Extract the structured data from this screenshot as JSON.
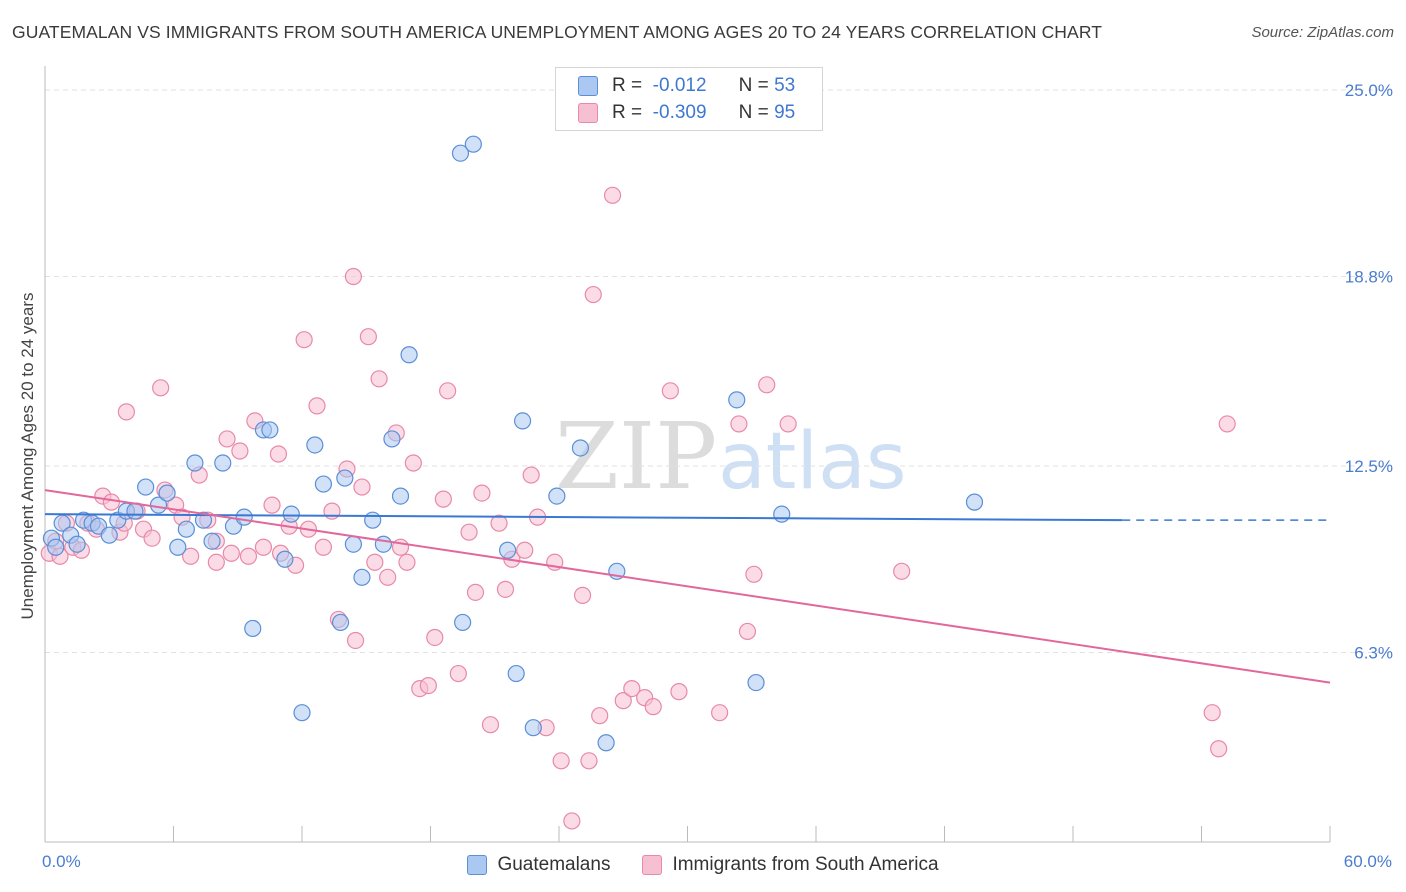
{
  "title": "GUATEMALAN VS IMMIGRANTS FROM SOUTH AMERICA UNEMPLOYMENT AMONG AGES 20 TO 24 YEARS CORRELATION CHART",
  "source": "Source: ZipAtlas.com",
  "watermark": {
    "zip": "ZIP",
    "atlas": "atlas"
  },
  "legend": {
    "r_label": "R =",
    "n_label": "N =",
    "rows": [
      {
        "r": "-0.012",
        "n": "53",
        "fill": "#aac8f2",
        "stroke": "#5b8fd6"
      },
      {
        "r": "-0.309",
        "n": "95",
        "fill": "#f7bfd2",
        "stroke": "#e889a9"
      }
    ]
  },
  "bottom_legend": [
    "Guatemalans",
    "Immigrants from South America"
  ],
  "colors": {
    "blue": "#3a78d4",
    "pink": "#e2679a",
    "blue_fill": "#aac8f2",
    "pink_fill": "#f7bfd2",
    "tick_text": "#4a7ccf",
    "grid": "#e2e2e2"
  },
  "chart_data": {
    "type": "scatter",
    "title": "GUATEMALAN VS IMMIGRANTS FROM SOUTH AMERICA UNEMPLOYMENT AMONG AGES 20 TO 24 YEARS CORRELATION CHART",
    "xlabel": "",
    "ylabel": "Unemployment Among Ages 20 to 24 years",
    "xlim": [
      0,
      60
    ],
    "ylim": [
      0,
      25.6
    ],
    "x_tick_labels": [
      "0.0%",
      "60.0%"
    ],
    "y_ticks": [
      6.3,
      12.5,
      18.8,
      25.0
    ],
    "y_tick_labels": [
      "6.3%",
      "12.5%",
      "18.8%",
      "25.0%"
    ],
    "grid": true,
    "series": [
      {
        "name": "Guatemalans",
        "R": -0.012,
        "N": 53,
        "trend": {
          "x0": 0,
          "y0": 10.9,
          "x1": 50.3,
          "y1": 10.7,
          "dashed_to_x": 60,
          "dashed_to_y": 10.7
        },
        "points": [
          [
            0.3,
            10.1
          ],
          [
            0.5,
            9.8
          ],
          [
            0.8,
            10.6
          ],
          [
            1.2,
            10.2
          ],
          [
            1.5,
            9.9
          ],
          [
            1.8,
            10.7
          ],
          [
            2.2,
            10.6
          ],
          [
            2.5,
            10.5
          ],
          [
            3.0,
            10.2
          ],
          [
            3.4,
            10.7
          ],
          [
            3.8,
            11.0
          ],
          [
            4.2,
            11.0
          ],
          [
            4.7,
            11.8
          ],
          [
            5.3,
            11.2
          ],
          [
            5.7,
            11.6
          ],
          [
            6.2,
            9.8
          ],
          [
            6.6,
            10.4
          ],
          [
            7.0,
            12.6
          ],
          [
            7.4,
            10.7
          ],
          [
            7.8,
            10.0
          ],
          [
            8.3,
            12.6
          ],
          [
            8.8,
            10.5
          ],
          [
            9.3,
            10.8
          ],
          [
            9.7,
            7.1
          ],
          [
            10.2,
            13.7
          ],
          [
            10.5,
            13.7
          ],
          [
            11.2,
            9.4
          ],
          [
            11.5,
            10.9
          ],
          [
            12.0,
            4.3
          ],
          [
            12.6,
            13.2
          ],
          [
            13.0,
            11.9
          ],
          [
            13.8,
            7.3
          ],
          [
            14.0,
            12.1
          ],
          [
            14.4,
            9.9
          ],
          [
            14.8,
            8.8
          ],
          [
            15.3,
            10.7
          ],
          [
            15.8,
            9.9
          ],
          [
            16.2,
            13.4
          ],
          [
            16.6,
            11.5
          ],
          [
            17.0,
            16.2
          ],
          [
            19.4,
            22.9
          ],
          [
            20.0,
            23.2
          ],
          [
            19.5,
            7.3
          ],
          [
            21.6,
            9.7
          ],
          [
            22.0,
            5.6
          ],
          [
            22.3,
            14.0
          ],
          [
            22.8,
            3.8
          ],
          [
            23.9,
            11.5
          ],
          [
            25.0,
            13.1
          ],
          [
            26.2,
            3.3
          ],
          [
            26.7,
            9.0
          ],
          [
            32.3,
            14.7
          ],
          [
            33.2,
            5.3
          ],
          [
            34.4,
            10.9
          ],
          [
            43.4,
            11.3
          ]
        ]
      },
      {
        "name": "Immigrants from South America",
        "R": -0.309,
        "N": 95,
        "trend": {
          "x0": 0,
          "y0": 11.7,
          "x1": 60,
          "y1": 5.3
        },
        "points": [
          [
            0.2,
            9.6
          ],
          [
            0.5,
            10.0
          ],
          [
            0.7,
            9.5
          ],
          [
            1.0,
            10.6
          ],
          [
            1.3,
            9.8
          ],
          [
            1.7,
            9.7
          ],
          [
            2.0,
            10.6
          ],
          [
            2.4,
            10.4
          ],
          [
            2.7,
            11.5
          ],
          [
            3.1,
            11.3
          ],
          [
            3.5,
            10.3
          ],
          [
            3.7,
            10.6
          ],
          [
            3.8,
            14.3
          ],
          [
            4.3,
            11.0
          ],
          [
            4.6,
            10.4
          ],
          [
            5.0,
            10.1
          ],
          [
            5.4,
            15.1
          ],
          [
            5.6,
            11.7
          ],
          [
            6.1,
            11.2
          ],
          [
            6.4,
            10.8
          ],
          [
            6.8,
            9.5
          ],
          [
            7.2,
            12.2
          ],
          [
            7.6,
            10.7
          ],
          [
            8.0,
            10.0
          ],
          [
            8.0,
            9.3
          ],
          [
            8.5,
            13.4
          ],
          [
            8.7,
            9.6
          ],
          [
            9.1,
            13.0
          ],
          [
            9.5,
            9.5
          ],
          [
            9.8,
            14.0
          ],
          [
            10.2,
            9.8
          ],
          [
            10.6,
            11.2
          ],
          [
            10.9,
            12.9
          ],
          [
            11.0,
            9.6
          ],
          [
            11.4,
            10.5
          ],
          [
            11.7,
            9.2
          ],
          [
            12.1,
            16.7
          ],
          [
            12.3,
            10.4
          ],
          [
            12.7,
            14.5
          ],
          [
            13.0,
            9.8
          ],
          [
            13.4,
            11.0
          ],
          [
            13.7,
            7.4
          ],
          [
            14.1,
            12.4
          ],
          [
            14.4,
            18.8
          ],
          [
            14.5,
            6.7
          ],
          [
            14.8,
            11.8
          ],
          [
            15.1,
            16.8
          ],
          [
            15.4,
            9.3
          ],
          [
            15.6,
            15.4
          ],
          [
            16.0,
            8.8
          ],
          [
            16.4,
            13.6
          ],
          [
            16.6,
            9.8
          ],
          [
            16.9,
            9.3
          ],
          [
            17.2,
            12.6
          ],
          [
            17.5,
            5.1
          ],
          [
            17.9,
            5.2
          ],
          [
            18.2,
            6.8
          ],
          [
            18.6,
            11.4
          ],
          [
            18.8,
            15.0
          ],
          [
            19.3,
            5.6
          ],
          [
            19.8,
            10.3
          ],
          [
            20.1,
            8.3
          ],
          [
            20.4,
            11.6
          ],
          [
            20.8,
            3.9
          ],
          [
            21.2,
            10.6
          ],
          [
            21.5,
            8.4
          ],
          [
            21.8,
            9.4
          ],
          [
            22.4,
            9.7
          ],
          [
            22.7,
            12.2
          ],
          [
            23.0,
            10.8
          ],
          [
            23.4,
            3.8
          ],
          [
            23.8,
            9.3
          ],
          [
            24.1,
            2.7
          ],
          [
            24.6,
            0.7
          ],
          [
            25.1,
            8.2
          ],
          [
            25.4,
            2.7
          ],
          [
            25.6,
            18.2
          ],
          [
            25.9,
            4.2
          ],
          [
            26.5,
            21.5
          ],
          [
            27.0,
            4.7
          ],
          [
            27.4,
            5.1
          ],
          [
            28.0,
            4.8
          ],
          [
            28.4,
            4.5
          ],
          [
            29.2,
            15.0
          ],
          [
            29.6,
            5.0
          ],
          [
            31.5,
            4.3
          ],
          [
            32.4,
            13.9
          ],
          [
            32.8,
            7.0
          ],
          [
            33.1,
            8.9
          ],
          [
            33.7,
            15.2
          ],
          [
            34.7,
            13.9
          ],
          [
            40.0,
            9.0
          ],
          [
            54.5,
            4.3
          ],
          [
            54.8,
            3.1
          ],
          [
            55.2,
            13.9
          ]
        ]
      }
    ]
  }
}
